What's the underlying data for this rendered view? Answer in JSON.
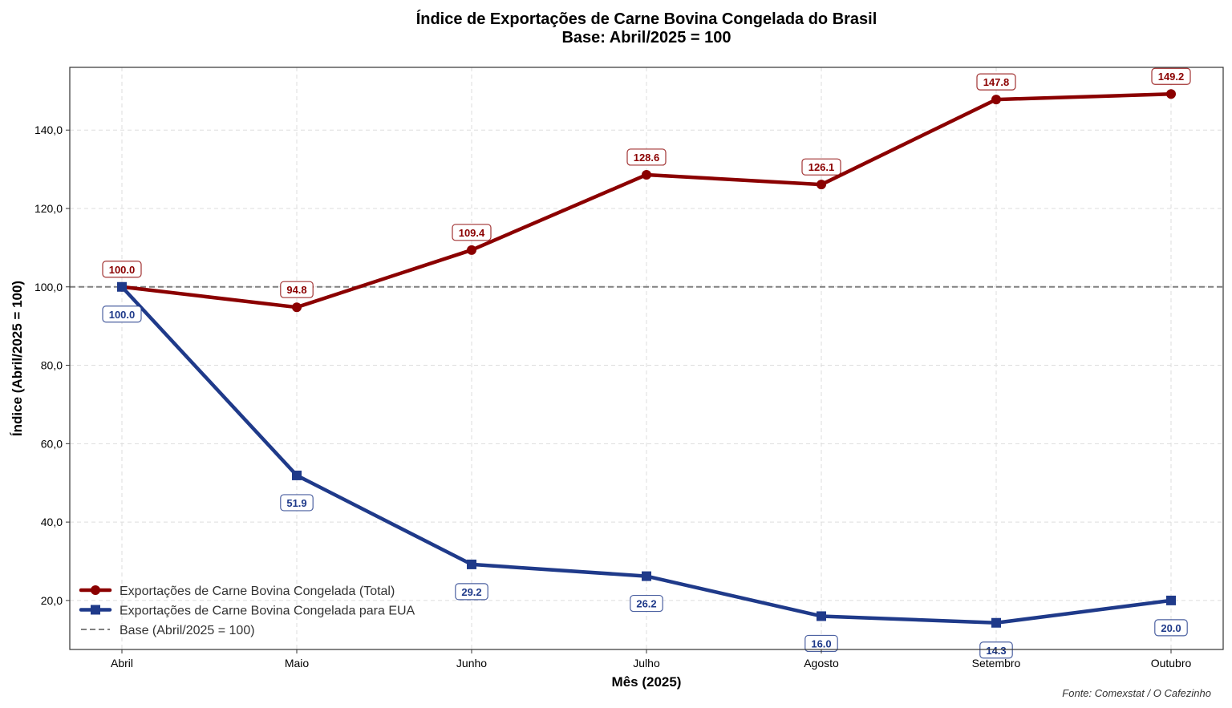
{
  "chart_data": {
    "type": "line",
    "title": "Índice de Exportações de Carne Bovina Congelada do Brasil",
    "subtitle": "Base: Abril/2025 = 100",
    "xlabel": "Mês (2025)",
    "ylabel": "Índice (Abril/2025 = 100)",
    "categories": [
      "Abril",
      "Maio",
      "Junho",
      "Julho",
      "Agosto",
      "Setembro",
      "Outubro"
    ],
    "ylim": [
      7.5,
      156
    ],
    "yticks": [
      20,
      40,
      60,
      80,
      100,
      120,
      140
    ],
    "ytick_labels": [
      "20,0",
      "40,0",
      "60,0",
      "80,0",
      "100,0",
      "120,0",
      "140,0"
    ],
    "grid": true,
    "legend_position": "lower-left",
    "series": [
      {
        "name": "Exportações de Carne Bovina Congelada (Total)",
        "color": "#8b0000",
        "marker": "circle",
        "values": [
          100.0,
          94.8,
          109.4,
          128.6,
          126.1,
          147.8,
          149.2
        ],
        "labels": [
          "100.0",
          "94.8",
          "109.4",
          "128.6",
          "126.1",
          "147.8",
          "149.2"
        ]
      },
      {
        "name": "Exportações de Carne Bovina Congelada para EUA",
        "color": "#1f3a8a",
        "marker": "square",
        "values": [
          100.0,
          51.9,
          29.2,
          26.2,
          16.0,
          14.3,
          20.0
        ],
        "labels": [
          "100.0",
          "51.9",
          "29.2",
          "26.2",
          "16.0",
          "14.3",
          "20.0"
        ]
      }
    ],
    "reference_line": {
      "name": "Base (Abril/2025 = 100)",
      "value": 100,
      "color": "#808080",
      "style": "dashed"
    },
    "source": "Fonte: Comexstat / O Cafezinho"
  }
}
